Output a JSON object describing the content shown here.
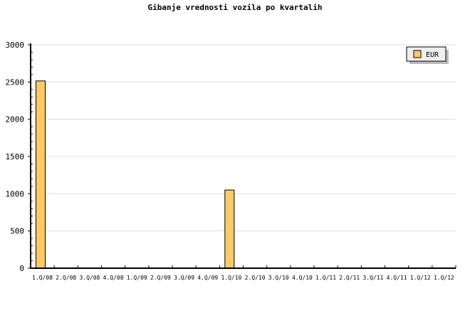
{
  "chart_data": {
    "type": "bar",
    "title": "Gibanje vrednosti vozila po kvartalih",
    "categories": [
      "1.Q/08",
      "2.Q/08",
      "3.Q/08",
      "4.Q/08",
      "1.Q/09",
      "2.Q/09",
      "3.Q/09",
      "4.Q/09",
      "1.Q/10",
      "2.Q/10",
      "3.Q/10",
      "4.Q/10",
      "1.Q/11",
      "2.Q/11",
      "3.Q/11",
      "4.Q/11",
      "1.Q/12",
      "1.Q/12"
    ],
    "series": [
      {
        "name": "EUR",
        "values": [
          2515,
          0,
          0,
          0,
          0,
          0,
          0,
          0,
          1050,
          0,
          0,
          0,
          0,
          0,
          0,
          0,
          0,
          0
        ],
        "color": "#ffc966"
      }
    ],
    "ylim": [
      0,
      3000
    ],
    "yticks": [
      0,
      500,
      1000,
      1500,
      2000,
      2500,
      3000
    ],
    "grid": true,
    "legend": "top-right"
  }
}
